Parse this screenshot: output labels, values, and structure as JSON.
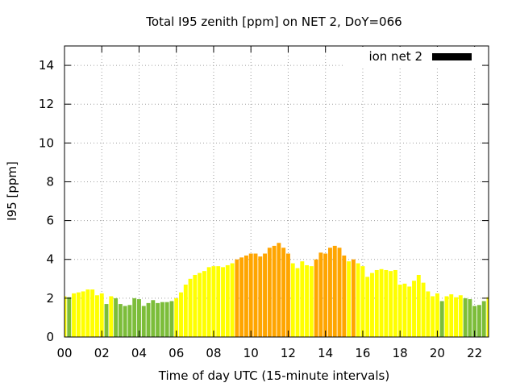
{
  "chart_data": {
    "type": "bar",
    "title": "Total I95 zenith [ppm] on NET 2, DoY=066",
    "xlabel": "Time of day UTC (15-minute intervals)",
    "ylabel": "I95 [ppm]",
    "xlim": [
      0,
      22.75
    ],
    "ylim": [
      0,
      15
    ],
    "x_ticks": [
      "00",
      "02",
      "04",
      "06",
      "08",
      "10",
      "12",
      "14",
      "16",
      "18",
      "20",
      "22"
    ],
    "y_ticks": [
      "0",
      "2",
      "4",
      "6",
      "8",
      "10",
      "12",
      "14"
    ],
    "grid": true,
    "legend_position": "top-right",
    "series": [
      {
        "name": "ion net 2",
        "color": "#000000",
        "x": [
          0.0,
          0.25,
          0.5,
          0.75,
          1.0,
          1.25,
          1.5,
          1.75,
          2.0,
          2.25,
          2.5,
          2.75,
          3.0,
          3.25,
          3.5,
          3.75,
          4.0,
          4.25,
          4.5,
          4.75,
          5.0,
          5.25,
          5.5,
          5.75,
          6.0,
          6.25,
          6.5,
          6.75,
          7.0,
          7.25,
          7.5,
          7.75,
          8.0,
          8.25,
          8.5,
          8.75,
          9.0,
          9.25,
          9.5,
          9.75,
          10.0,
          10.25,
          10.5,
          10.75,
          11.0,
          11.25,
          11.5,
          11.75,
          12.0,
          12.25,
          12.5,
          12.75,
          13.0,
          13.25,
          13.5,
          13.75,
          14.0,
          14.25,
          14.5,
          14.75,
          15.0,
          15.25,
          15.5,
          15.75,
          16.0,
          16.25,
          16.5,
          16.75,
          17.0,
          17.25,
          17.5,
          17.75,
          18.0,
          18.25,
          18.5,
          18.75,
          19.0,
          19.25,
          19.5,
          19.75,
          20.0,
          20.25,
          20.5,
          20.75,
          21.0,
          21.25,
          21.5,
          21.75,
          22.0,
          22.25,
          22.5,
          22.75
        ],
        "values": [
          2.1,
          2.05,
          2.25,
          2.3,
          2.35,
          2.45,
          2.45,
          2.15,
          2.25,
          1.7,
          2.1,
          2.0,
          1.7,
          1.6,
          1.65,
          2.0,
          1.95,
          1.6,
          1.75,
          1.9,
          1.75,
          1.8,
          1.8,
          1.85,
          2.0,
          2.3,
          2.7,
          3.0,
          3.2,
          3.3,
          3.4,
          3.6,
          3.65,
          3.65,
          3.6,
          3.7,
          3.8,
          4.0,
          4.1,
          4.2,
          4.3,
          4.3,
          4.15,
          4.3,
          4.6,
          4.7,
          4.85,
          4.6,
          4.3,
          3.8,
          3.55,
          3.9,
          3.7,
          3.65,
          4.0,
          4.35,
          4.3,
          4.6,
          4.7,
          4.6,
          4.2,
          3.9,
          4.0,
          3.8,
          3.65,
          3.1,
          3.3,
          3.45,
          3.5,
          3.45,
          3.4,
          3.45,
          2.7,
          2.75,
          2.6,
          2.9,
          3.2,
          2.8,
          2.35,
          2.1,
          2.25,
          1.85,
          2.1,
          2.2,
          2.05,
          2.15,
          2.0,
          1.95,
          1.6,
          1.65,
          1.85,
          2.05
        ],
        "bar_colors": [
          "#ffff00",
          "#7cbd3a",
          "#ffff00",
          "#ffff00",
          "#ffff00",
          "#ffff00",
          "#ffff00",
          "#ffff00",
          "#ffff00",
          "#7cbd3a",
          "#ffff00",
          "#7cbd3a",
          "#7cbd3a",
          "#7cbd3a",
          "#7cbd3a",
          "#7cbd3a",
          "#7cbd3a",
          "#7cbd3a",
          "#7cbd3a",
          "#7cbd3a",
          "#7cbd3a",
          "#7cbd3a",
          "#7cbd3a",
          "#7cbd3a",
          "#ffff00",
          "#ffff00",
          "#ffff00",
          "#ffff00",
          "#ffff00",
          "#ffff00",
          "#ffff00",
          "#ffff00",
          "#ffff00",
          "#ffff00",
          "#ffff00",
          "#ffff00",
          "#ffff00",
          "#ffa500",
          "#ffa500",
          "#ffa500",
          "#ffa500",
          "#ffa500",
          "#ffa500",
          "#ffa500",
          "#ffa500",
          "#ffa500",
          "#ffa500",
          "#ffa500",
          "#ffa500",
          "#ffff00",
          "#ffff00",
          "#ffff00",
          "#ffff00",
          "#ffff00",
          "#ffa500",
          "#ffa500",
          "#ffa500",
          "#ffa500",
          "#ffa500",
          "#ffa500",
          "#ffa500",
          "#ffff00",
          "#ffa500",
          "#ffff00",
          "#ffff00",
          "#ffff00",
          "#ffff00",
          "#ffff00",
          "#ffff00",
          "#ffff00",
          "#ffff00",
          "#ffff00",
          "#ffff00",
          "#ffff00",
          "#ffff00",
          "#ffff00",
          "#ffff00",
          "#ffff00",
          "#ffff00",
          "#ffff00",
          "#ffff00",
          "#7cbd3a",
          "#ffff00",
          "#ffff00",
          "#ffff00",
          "#ffff00",
          "#7cbd3a",
          "#7cbd3a",
          "#7cbd3a",
          "#7cbd3a",
          "#7cbd3a",
          "#ffff00"
        ]
      }
    ]
  }
}
